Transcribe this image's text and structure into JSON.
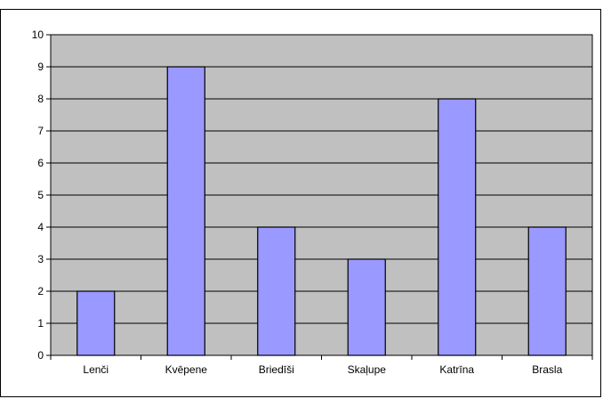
{
  "chart_data": {
    "type": "bar",
    "title": "",
    "xlabel": "",
    "ylabel": "",
    "categories": [
      "Lenči",
      "Kvēpene",
      "Briedīši",
      "Skaļupe",
      "Katrīna",
      "Brasla"
    ],
    "values": [
      2,
      9,
      4,
      3,
      8,
      4
    ],
    "ylim": [
      0,
      10
    ],
    "yticks": [
      0,
      1,
      2,
      3,
      4,
      5,
      6,
      7,
      8,
      9,
      10
    ],
    "grid": true,
    "legend": "none",
    "colors": {
      "plot_background": "#c0c0c0",
      "bar_fill": "#9999ff",
      "bar_stroke": "#000000",
      "gridline": "#000000"
    }
  }
}
